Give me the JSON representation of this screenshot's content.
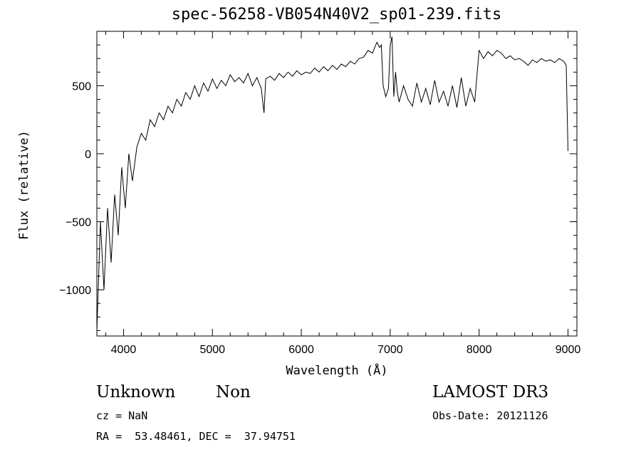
{
  "chart_data": {
    "type": "line",
    "title": "spec-56258-VB054N40V2_sp01-239.fits",
    "xlabel": "Wavelength (Å)",
    "ylabel": "Flux (relative)",
    "xlim": [
      3700,
      9100
    ],
    "ylim": [
      -1340,
      900
    ],
    "xticks": [
      4000,
      5000,
      6000,
      7000,
      8000,
      9000
    ],
    "yticks": [
      -1000,
      -500,
      0,
      500
    ],
    "series": [
      {
        "name": "flux",
        "x": [
          3700,
          3740,
          3780,
          3820,
          3860,
          3900,
          3940,
          3980,
          4020,
          4060,
          4100,
          4150,
          4200,
          4250,
          4300,
          4350,
          4400,
          4450,
          4500,
          4550,
          4600,
          4650,
          4700,
          4750,
          4800,
          4850,
          4900,
          4950,
          5000,
          5050,
          5100,
          5150,
          5200,
          5250,
          5300,
          5350,
          5400,
          5450,
          5500,
          5550,
          5580,
          5600,
          5650,
          5700,
          5750,
          5800,
          5850,
          5900,
          5950,
          6000,
          6050,
          6100,
          6150,
          6200,
          6250,
          6300,
          6350,
          6400,
          6450,
          6500,
          6550,
          6600,
          6650,
          6700,
          6750,
          6800,
          6850,
          6880,
          6900,
          6920,
          6950,
          6980,
          7000,
          7020,
          7040,
          7060,
          7080,
          7100,
          7150,
          7200,
          7250,
          7300,
          7350,
          7400,
          7450,
          7500,
          7550,
          7600,
          7650,
          7700,
          7750,
          7800,
          7850,
          7900,
          7950,
          8000,
          8050,
          8100,
          8150,
          8200,
          8250,
          8300,
          8350,
          8400,
          8450,
          8500,
          8550,
          8600,
          8650,
          8700,
          8750,
          8800,
          8850,
          8900,
          8950,
          8980,
          9000
        ],
        "y": [
          -1300,
          -500,
          -1000,
          -400,
          -800,
          -300,
          -600,
          -100,
          -400,
          0,
          -200,
          50,
          150,
          100,
          250,
          200,
          300,
          250,
          350,
          300,
          400,
          350,
          450,
          400,
          500,
          420,
          520,
          460,
          550,
          480,
          540,
          500,
          580,
          530,
          560,
          520,
          590,
          500,
          560,
          480,
          300,
          550,
          570,
          540,
          590,
          560,
          600,
          570,
          610,
          580,
          600,
          590,
          630,
          600,
          640,
          610,
          650,
          620,
          660,
          640,
          680,
          660,
          700,
          710,
          760,
          740,
          820,
          780,
          800,
          500,
          420,
          480,
          800,
          860,
          420,
          600,
          450,
          380,
          500,
          400,
          350,
          520,
          380,
          480,
          360,
          540,
          380,
          460,
          350,
          500,
          340,
          560,
          350,
          480,
          380,
          760,
          700,
          750,
          720,
          760,
          740,
          700,
          720,
          690,
          700,
          680,
          650,
          690,
          670,
          700,
          680,
          690,
          670,
          700,
          680,
          650,
          20
        ]
      }
    ]
  },
  "footer": {
    "object_class": "Unknown",
    "subclass": "Non",
    "survey": "LAMOST DR3",
    "cz": "cz = NaN",
    "obs_date": "Obs-Date: 20121126",
    "coords": "RA =  53.48461, DEC =  37.94751"
  }
}
